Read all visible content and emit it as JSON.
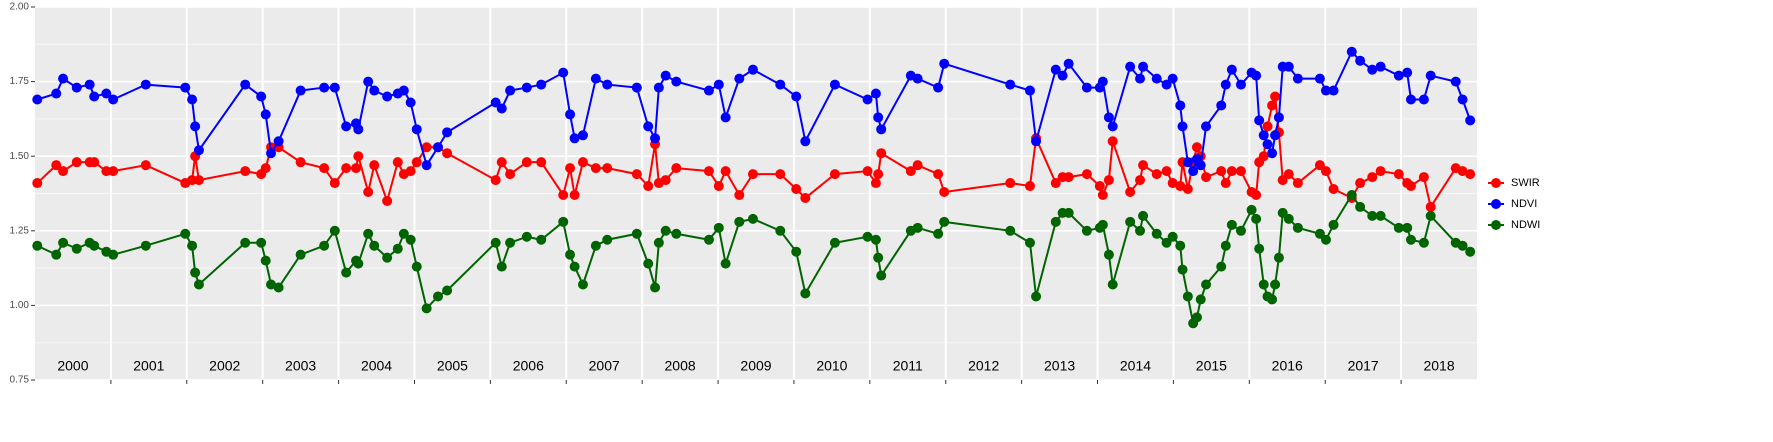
{
  "chart_data": {
    "type": "line",
    "x": [
      2000.03,
      2000.28,
      2000.37,
      2000.55,
      2000.72,
      2000.78,
      2000.94,
      2001.03,
      2001.46,
      2001.98,
      2002.07,
      2002.11,
      2002.16,
      2002.77,
      2002.98,
      2003.04,
      2003.11,
      2003.21,
      2003.5,
      2003.81,
      2003.95,
      2004.1,
      2004.23,
      2004.26,
      2004.39,
      2004.47,
      2004.64,
      2004.78,
      2004.86,
      2004.95,
      2005.03,
      2005.16,
      2005.31,
      2005.43,
      2006.07,
      2006.15,
      2006.26,
      2006.48,
      2006.67,
      2006.96,
      2007.05,
      2007.11,
      2007.22,
      2007.39,
      2007.54,
      2007.93,
      2008.08,
      2008.17,
      2008.22,
      2008.31,
      2008.45,
      2008.88,
      2009.01,
      2009.1,
      2009.28,
      2009.46,
      2009.82,
      2010.03,
      2010.15,
      2010.54,
      2010.97,
      2011.08,
      2011.11,
      2011.15,
      2011.54,
      2011.63,
      2011.9,
      2011.98,
      2012.85,
      2013.11,
      2013.19,
      2013.45,
      2013.54,
      2013.62,
      2013.86,
      2014.03,
      2014.07,
      2014.15,
      2014.2,
      2014.43,
      2014.56,
      2014.6,
      2014.78,
      2014.91,
      2014.99,
      2015.09,
      2015.12,
      2015.19,
      2015.26,
      2015.31,
      2015.36,
      2015.43,
      2015.63,
      2015.69,
      2015.77,
      2015.89,
      2016.03,
      2016.09,
      2016.13,
      2016.19,
      2016.24,
      2016.3,
      2016.34,
      2016.39,
      2016.44,
      2016.52,
      2016.64,
      2016.93,
      2017.01,
      2017.11,
      2017.35,
      2017.46,
      2017.62,
      2017.73,
      2017.97,
      2018.08,
      2018.13,
      2018.3,
      2018.39,
      2018.72,
      2018.81,
      2018.91
    ],
    "series": [
      {
        "name": "SWIR",
        "color": "#ff0000",
        "values": [
          1.41,
          1.47,
          1.45,
          1.48,
          1.48,
          1.48,
          1.45,
          1.45,
          1.47,
          1.41,
          1.42,
          1.5,
          1.42,
          1.45,
          1.44,
          1.46,
          1.53,
          1.53,
          1.48,
          1.46,
          1.41,
          1.46,
          1.46,
          1.5,
          1.38,
          1.47,
          1.35,
          1.48,
          1.44,
          1.45,
          1.48,
          1.53,
          1.53,
          1.51,
          1.42,
          1.48,
          1.44,
          1.48,
          1.48,
          1.37,
          1.46,
          1.37,
          1.48,
          1.46,
          1.46,
          1.44,
          1.4,
          1.54,
          1.41,
          1.42,
          1.46,
          1.45,
          1.4,
          1.45,
          1.37,
          1.44,
          1.44,
          1.39,
          1.36,
          1.44,
          1.45,
          1.41,
          1.44,
          1.51,
          1.45,
          1.47,
          1.44,
          1.38,
          1.41,
          1.4,
          1.56,
          1.41,
          1.43,
          1.43,
          1.44,
          1.4,
          1.37,
          1.42,
          1.55,
          1.38,
          1.42,
          1.47,
          1.44,
          1.45,
          1.41,
          1.4,
          1.48,
          1.39,
          1.48,
          1.53,
          1.5,
          1.43,
          1.45,
          1.41,
          1.45,
          1.45,
          1.38,
          1.37,
          1.48,
          1.5,
          1.6,
          1.67,
          1.7,
          1.58,
          1.42,
          1.44,
          1.41,
          1.47,
          1.45,
          1.39,
          1.36,
          1.41,
          1.43,
          1.45,
          1.44,
          1.41,
          1.4,
          1.43,
          1.33,
          1.46,
          1.45,
          1.44
        ]
      },
      {
        "name": "NDVI",
        "color": "#0000ff",
        "values": [
          1.69,
          1.71,
          1.76,
          1.73,
          1.74,
          1.7,
          1.71,
          1.69,
          1.74,
          1.73,
          1.69,
          1.6,
          1.52,
          1.74,
          1.7,
          1.64,
          1.51,
          1.55,
          1.72,
          1.73,
          1.73,
          1.6,
          1.61,
          1.59,
          1.75,
          1.72,
          1.7,
          1.71,
          1.72,
          1.68,
          1.59,
          1.47,
          1.53,
          1.58,
          1.68,
          1.66,
          1.72,
          1.73,
          1.74,
          1.78,
          1.64,
          1.56,
          1.57,
          1.76,
          1.74,
          1.73,
          1.6,
          1.56,
          1.73,
          1.77,
          1.75,
          1.72,
          1.74,
          1.63,
          1.76,
          1.79,
          1.74,
          1.7,
          1.55,
          1.74,
          1.69,
          1.71,
          1.63,
          1.59,
          1.77,
          1.76,
          1.73,
          1.81,
          1.74,
          1.72,
          1.55,
          1.79,
          1.77,
          1.81,
          1.73,
          1.73,
          1.75,
          1.63,
          1.6,
          1.8,
          1.76,
          1.8,
          1.76,
          1.74,
          1.76,
          1.67,
          1.6,
          1.48,
          1.45,
          1.49,
          1.47,
          1.6,
          1.67,
          1.74,
          1.79,
          1.74,
          1.78,
          1.77,
          1.62,
          1.57,
          1.54,
          1.51,
          1.57,
          1.63,
          1.8,
          1.8,
          1.76,
          1.76,
          1.72,
          1.72,
          1.85,
          1.82,
          1.79,
          1.8,
          1.77,
          1.78,
          1.69,
          1.69,
          1.77,
          1.75,
          1.69,
          1.62
        ]
      },
      {
        "name": "NDWI",
        "color": "#006400",
        "values": [
          1.2,
          1.17,
          1.21,
          1.19,
          1.21,
          1.2,
          1.18,
          1.17,
          1.2,
          1.24,
          1.2,
          1.11,
          1.07,
          1.21,
          1.21,
          1.15,
          1.07,
          1.06,
          1.17,
          1.2,
          1.25,
          1.11,
          1.15,
          1.14,
          1.24,
          1.2,
          1.16,
          1.19,
          1.24,
          1.22,
          1.13,
          0.99,
          1.03,
          1.05,
          1.21,
          1.13,
          1.21,
          1.23,
          1.22,
          1.28,
          1.17,
          1.13,
          1.07,
          1.2,
          1.22,
          1.24,
          1.14,
          1.06,
          1.21,
          1.25,
          1.24,
          1.22,
          1.26,
          1.14,
          1.28,
          1.29,
          1.25,
          1.18,
          1.04,
          1.21,
          1.23,
          1.22,
          1.16,
          1.1,
          1.25,
          1.26,
          1.24,
          1.28,
          1.25,
          1.21,
          1.03,
          1.28,
          1.31,
          1.31,
          1.25,
          1.26,
          1.27,
          1.17,
          1.07,
          1.28,
          1.25,
          1.3,
          1.24,
          1.21,
          1.23,
          1.2,
          1.12,
          1.03,
          0.94,
          0.96,
          1.02,
          1.07,
          1.13,
          1.2,
          1.27,
          1.25,
          1.32,
          1.29,
          1.19,
          1.07,
          1.03,
          1.02,
          1.07,
          1.16,
          1.31,
          1.29,
          1.26,
          1.24,
          1.22,
          1.27,
          1.37,
          1.33,
          1.3,
          1.3,
          1.26,
          1.26,
          1.22,
          1.21,
          1.3,
          1.21,
          1.2,
          1.18
        ]
      }
    ],
    "year_labels": [
      "2000",
      "2001",
      "2002",
      "2003",
      "2004",
      "2005",
      "2006",
      "2007",
      "2008",
      "2009",
      "2010",
      "2011",
      "2012",
      "2013",
      "2014",
      "2015",
      "2016",
      "2017",
      "2018"
    ],
    "xlim": [
      2000,
      2019
    ],
    "xticks": [
      2001,
      2002,
      2003,
      2004,
      2005,
      2006,
      2007,
      2008,
      2009,
      2010,
      2011,
      2012,
      2013,
      2014,
      2015,
      2016,
      2017,
      2018
    ],
    "ylim": [
      0.75,
      2.0
    ],
    "yticks": [
      0.75,
      {
        "value": 1.0,
        "label": "1.00"
      },
      1.25,
      {
        "value": 1.5,
        "label": "1.50"
      },
      1.75,
      {
        "value": 2.0,
        "label": "2.00"
      }
    ],
    "grid": true,
    "legend": "right"
  }
}
